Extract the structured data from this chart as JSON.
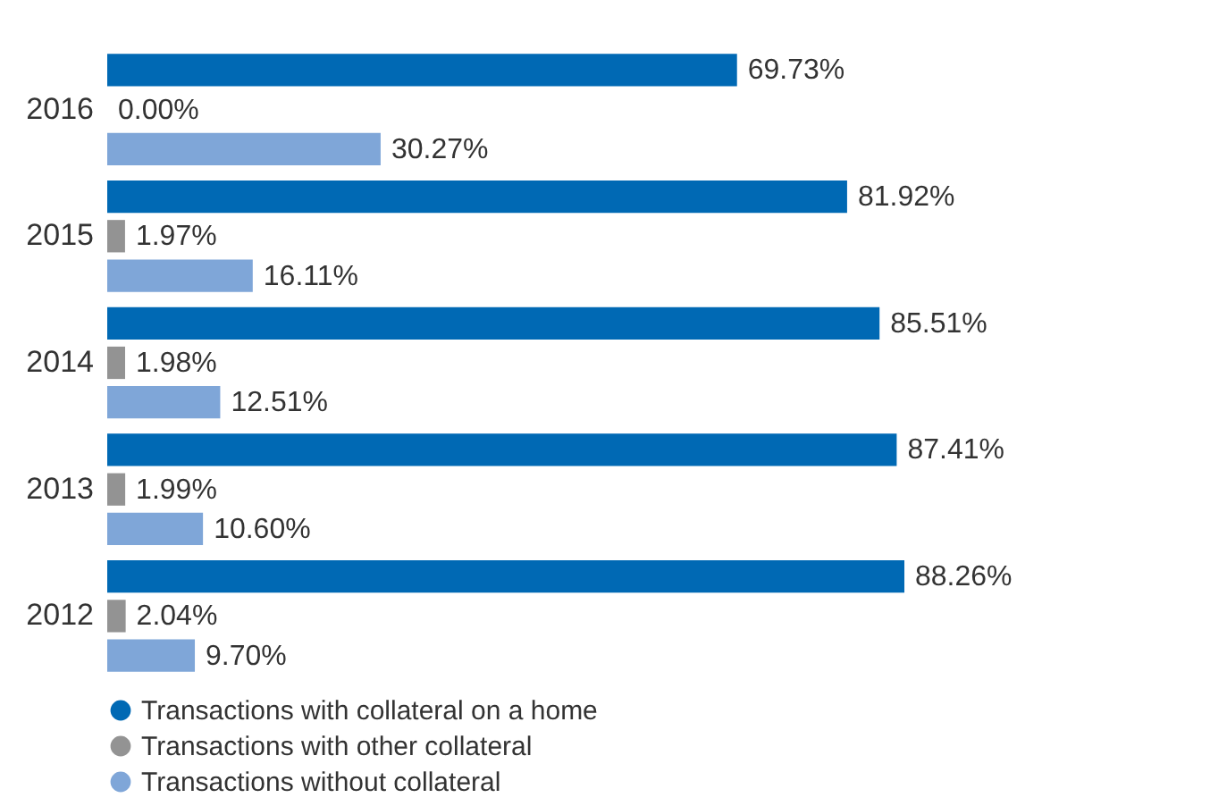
{
  "chart_data": {
    "type": "bar",
    "orientation": "horizontal",
    "categories": [
      "2016",
      "2015",
      "2014",
      "2013",
      "2012"
    ],
    "tick_labels": "y",
    "legend": "bottom left",
    "series": [
      {
        "name": "Transactions with collateral on a home",
        "color": "#0069b4",
        "values": [
          69.73,
          81.92,
          85.51,
          87.41,
          88.26
        ],
        "value_labels": [
          "69.73%",
          "81.92%",
          "85.51%",
          "87.41%",
          "88.26%"
        ]
      },
      {
        "name": "Transactions with other collateral",
        "color": "#939393",
        "values": [
          0.0,
          1.97,
          1.98,
          1.99,
          2.04
        ],
        "value_labels": [
          "0.00%",
          "1.97%",
          "1.98%",
          "1.99%",
          "2.04%"
        ]
      },
      {
        "name": "Transactions without collateral",
        "color": "#7fa6d8",
        "values": [
          30.27,
          16.11,
          12.51,
          10.6,
          9.7
        ],
        "value_labels": [
          "30.27%",
          "16.11%",
          "12.51%",
          "10.60%",
          "9.70%"
        ]
      }
    ]
  }
}
